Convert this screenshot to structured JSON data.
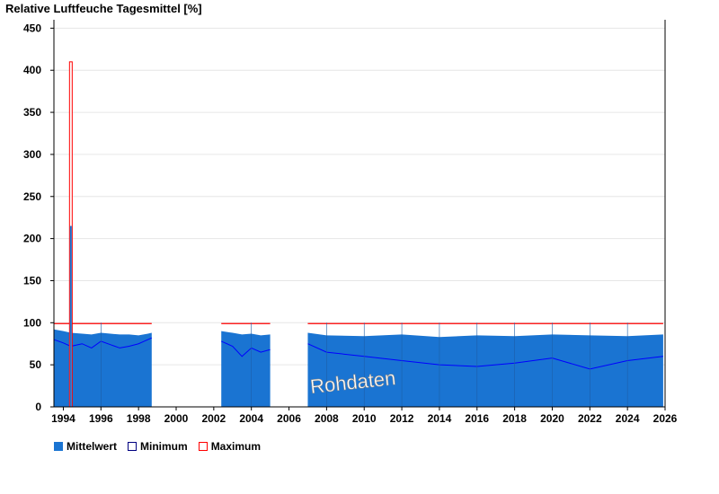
{
  "chart_data": {
    "type": "bar",
    "title": "Relative Luftfeuche Tagesmittel [%]",
    "watermark": "Rohdaten",
    "xlim": [
      1993.5,
      2026
    ],
    "ylim": [
      0,
      460
    ],
    "yticks": [
      0,
      50,
      100,
      150,
      200,
      250,
      300,
      350,
      400,
      450
    ],
    "xticks": [
      1994,
      1996,
      1998,
      2000,
      2002,
      2004,
      2006,
      2008,
      2010,
      2012,
      2014,
      2016,
      2018,
      2020,
      2022,
      2024,
      2026
    ],
    "xtick_labels": [
      "1994",
      "1996",
      "1998",
      "2000",
      "2002",
      "2004",
      "2006",
      "2008",
      "2010",
      "2012",
      "2014",
      "2016",
      "2018",
      "2020",
      "2022",
      "2024",
      "2026"
    ],
    "grid": true,
    "legend_position": "bottom-left",
    "colors": {
      "mean": "#1a74d2",
      "minimum": "#0000ff",
      "maximum": "#ff0000",
      "grid": "#e6e6e6"
    },
    "series": [
      {
        "name": "Mittelwert",
        "segments": [
          {
            "x": [
              1993.5,
              1994.0,
              1994.4,
              1995.0,
              1995.5,
              1996.0,
              1996.5,
              1997.0,
              1997.5,
              1998.0,
              1998.5,
              1998.7
            ],
            "y": [
              92,
              90,
              88,
              87,
              86,
              88,
              87,
              86,
              86,
              85,
              87,
              88
            ]
          },
          {
            "x": [
              2002.4,
              2003.0,
              2003.5,
              2004.0,
              2004.5,
              2005.0
            ],
            "y": [
              90,
              88,
              86,
              87,
              85,
              86
            ]
          },
          {
            "x": [
              2007.0,
              2008.0,
              2010.0,
              2012.0,
              2014.0,
              2016.0,
              2018.0,
              2020.0,
              2022.0,
              2024.0,
              2025.9
            ],
            "y": [
              88,
              85,
              84,
              86,
              83,
              85,
              84,
              86,
              85,
              84,
              86
            ]
          }
        ],
        "spike": {
          "x": 1994.4,
          "y": 215
        }
      },
      {
        "name": "Minimum",
        "segments": [
          {
            "x": [
              1993.5,
              1994.0,
              1994.4,
              1995.0,
              1995.5,
              1996.0,
              1996.5,
              1997.0,
              1997.5,
              1998.0,
              1998.5,
              1998.7
            ],
            "y": [
              80,
              76,
              72,
              75,
              70,
              78,
              74,
              70,
              72,
              75,
              80,
              82
            ]
          },
          {
            "x": [
              2002.4,
              2003.0,
              2003.5,
              2004.0,
              2004.5,
              2005.0
            ],
            "y": [
              78,
              72,
              60,
              70,
              65,
              68
            ]
          },
          {
            "x": [
              2007.0,
              2008.0,
              2010.0,
              2012.0,
              2014.0,
              2016.0,
              2018.0,
              2020.0,
              2022.0,
              2024.0,
              2025.9
            ],
            "y": [
              75,
              65,
              60,
              55,
              50,
              48,
              52,
              58,
              45,
              55,
              60
            ]
          }
        ]
      },
      {
        "name": "Maximum",
        "segments": [
          {
            "x": [
              1993.5,
              1998.7
            ],
            "y": [
              99,
              99
            ]
          },
          {
            "x": [
              2002.4,
              2005.0
            ],
            "y": [
              99,
              99
            ]
          },
          {
            "x": [
              2007.0,
              2025.9
            ],
            "y": [
              99,
              99
            ]
          }
        ],
        "spike": {
          "x": 1994.4,
          "y": 410
        }
      }
    ]
  },
  "legend": {
    "mean_label": "Mittelwert",
    "min_label": "Minimum",
    "max_label": "Maximum"
  }
}
